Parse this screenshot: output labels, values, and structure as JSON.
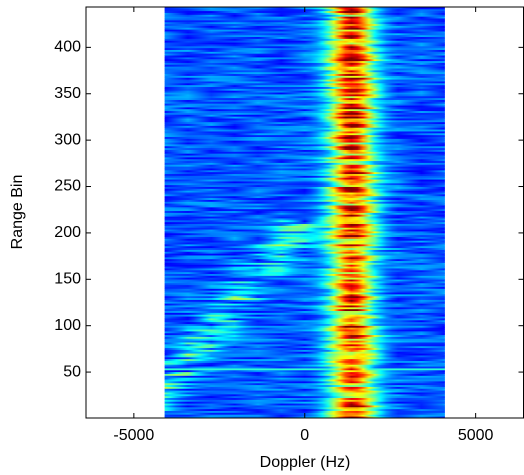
{
  "chart_data": {
    "type": "heatmap",
    "xlabel": "Doppler (Hz)",
    "ylabel": "Range Bin",
    "xlim": [
      -6400,
      6400
    ],
    "ylim": [
      0.5,
      443.5
    ],
    "xticks": [
      -5000,
      0,
      5000
    ],
    "yticks": [
      50,
      100,
      150,
      200,
      250,
      300,
      350,
      400
    ],
    "image_xlim": [
      -4100,
      4100
    ],
    "colormap": "jet"
  }
}
